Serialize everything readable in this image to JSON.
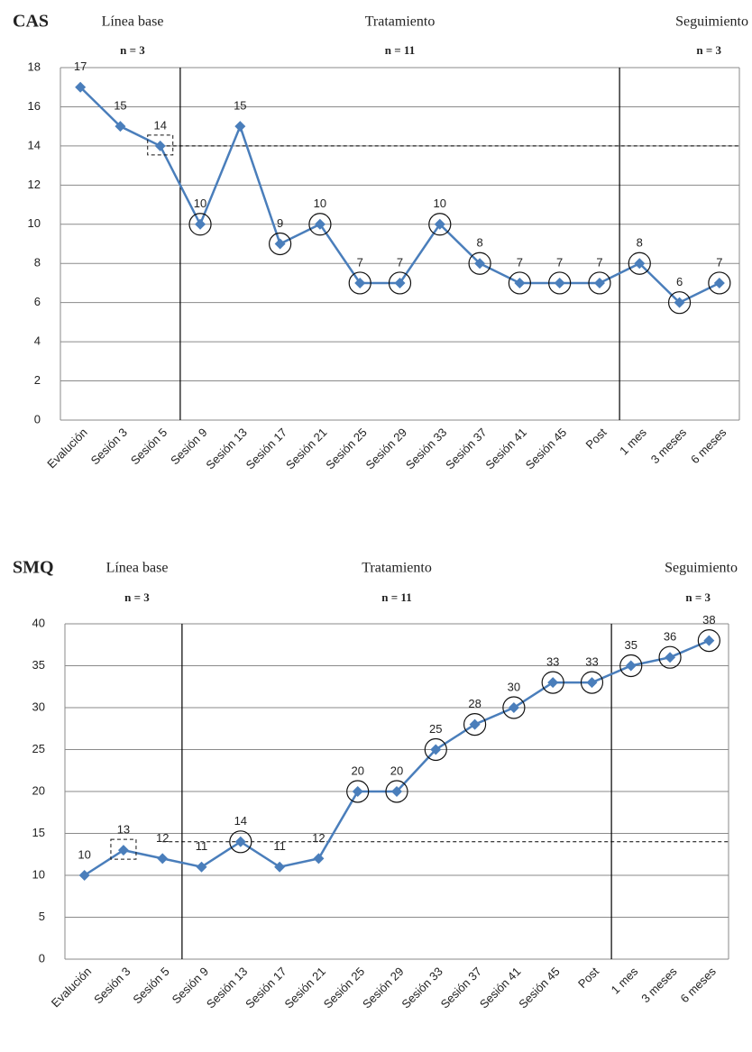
{
  "chart_data": [
    {
      "type": "line",
      "title": "CAS",
      "phases": [
        {
          "name": "Línea base",
          "n": {
            "value": 3,
            "label": "n = 3"
          }
        },
        {
          "name": "Tratamiento",
          "n": {
            "value": 11,
            "label": "n = 11"
          }
        },
        {
          "name": "Seguimiento",
          "n": {
            "value": 3,
            "label": "n = 3"
          }
        }
      ],
      "categories": [
        "Evalución",
        "Sesión 3",
        "Sesión 5",
        "Sesión 9",
        "Sesión 13",
        "Sesión 17",
        "Sesión 21",
        "Sesión 25",
        "Sesión 29",
        "Sesión 33",
        "Sesión 37",
        "Sesión 41",
        "Sesión 45",
        "Post",
        "1 mes",
        "3 meses",
        "6 meses"
      ],
      "values": [
        17,
        15,
        14,
        10,
        15,
        9,
        10,
        7,
        7,
        10,
        8,
        7,
        7,
        7,
        8,
        6,
        7
      ],
      "highlight": [
        null,
        null,
        "box",
        "circle",
        null,
        "circle",
        "circle",
        "circle",
        "circle",
        "circle",
        "circle",
        "circle",
        "circle",
        "circle",
        "circle",
        "circle",
        "circle"
      ],
      "reference_line": 14,
      "color": "#4a7ebb",
      "ylim": [
        0,
        18
      ],
      "yticks": [
        0,
        2,
        4,
        6,
        8,
        10,
        12,
        14,
        16,
        18
      ],
      "grid": true
    },
    {
      "type": "line",
      "title": "SMQ",
      "phases": [
        {
          "name": "Línea base",
          "n": {
            "value": 3,
            "label": "n = 3"
          }
        },
        {
          "name": "Tratamiento",
          "n": {
            "value": 11,
            "label": "n = 11"
          }
        },
        {
          "name": "Seguimiento",
          "n": {
            "value": 3,
            "label": "n = 3"
          }
        }
      ],
      "categories": [
        "Evalución",
        "Sesión 3",
        "Sesión 5",
        "Sesión 9",
        "Sesión 13",
        "Sesión 17",
        "Sesión 21",
        "Sesión 25",
        "Sesión 29",
        "Sesión 33",
        "Sesión 37",
        "Sesión 41",
        "Sesión 45",
        "Post",
        "1 mes",
        "3 meses",
        "6 meses"
      ],
      "values": [
        10,
        13,
        12,
        11,
        14,
        11,
        12,
        20,
        20,
        25,
        28,
        30,
        33,
        33,
        35,
        36,
        38
      ],
      "highlight": [
        null,
        "box",
        null,
        null,
        "circle",
        null,
        null,
        "circle",
        "circle",
        "circle",
        "circle",
        "circle",
        "circle",
        "circle",
        "circle",
        "circle",
        "circle"
      ],
      "reference_line": 14,
      "color": "#4a7ebb",
      "ylim": [
        0,
        40
      ],
      "yticks": [
        0,
        5,
        10,
        15,
        20,
        25,
        30,
        35,
        40
      ],
      "grid": true
    }
  ]
}
